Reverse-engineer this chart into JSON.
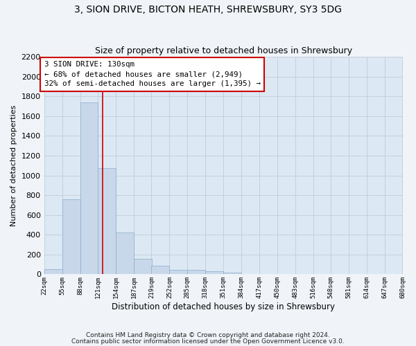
{
  "title": "3, SION DRIVE, BICTON HEATH, SHREWSBURY, SY3 5DG",
  "subtitle": "Size of property relative to detached houses in Shrewsbury",
  "xlabel": "Distribution of detached houses by size in Shrewsbury",
  "ylabel": "Number of detached properties",
  "bar_color": "#c8d8ea",
  "bar_edge_color": "#8aabcc",
  "grid_color": "#c0ccd8",
  "background_color": "#dce8f4",
  "fig_background": "#f0f4f8",
  "property_line_color": "#cc0000",
  "property_line_x": 130,
  "bin_edges": [
    22,
    55,
    88,
    121,
    154,
    187,
    219,
    252,
    285,
    318,
    351,
    384,
    417,
    450,
    483,
    516,
    548,
    581,
    614,
    647,
    680
  ],
  "bar_heights": [
    55,
    760,
    1740,
    1075,
    420,
    155,
    85,
    48,
    42,
    30,
    20,
    0,
    0,
    0,
    0,
    0,
    0,
    0,
    0,
    0
  ],
  "annotation_line1": "3 SION DRIVE: 130sqm",
  "annotation_line2": "← 68% of detached houses are smaller (2,949)",
  "annotation_line3": "32% of semi-detached houses are larger (1,395) →",
  "annotation_box_color": "#ffffff",
  "annotation_box_edge": "#cc0000",
  "tick_labels": [
    "22sqm",
    "55sqm",
    "88sqm",
    "121sqm",
    "154sqm",
    "187sqm",
    "219sqm",
    "252sqm",
    "285sqm",
    "318sqm",
    "351sqm",
    "384sqm",
    "417sqm",
    "450sqm",
    "483sqm",
    "516sqm",
    "548sqm",
    "581sqm",
    "614sqm",
    "647sqm",
    "680sqm"
  ],
  "footer1": "Contains HM Land Registry data © Crown copyright and database right 2024.",
  "footer2": "Contains public sector information licensed under the Open Government Licence v3.0.",
  "ylim": [
    0,
    2200
  ],
  "yticks": [
    0,
    200,
    400,
    600,
    800,
    1000,
    1200,
    1400,
    1600,
    1800,
    2000,
    2200
  ],
  "figsize": [
    6.0,
    5.0
  ],
  "dpi": 100
}
